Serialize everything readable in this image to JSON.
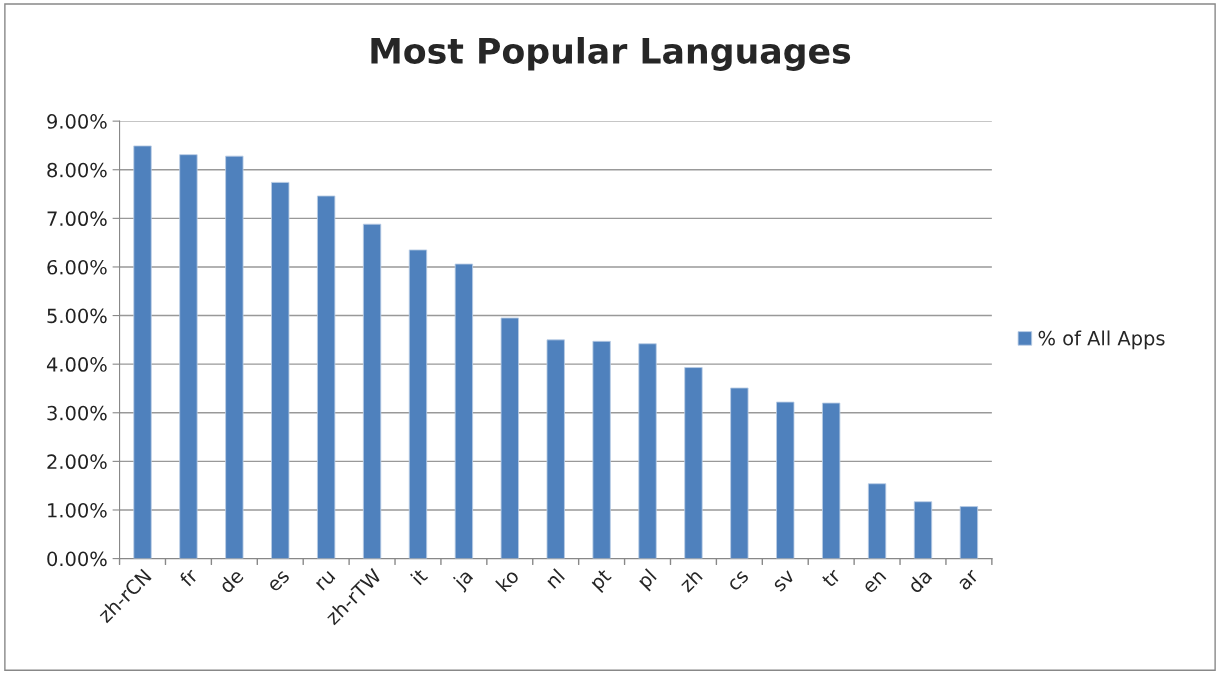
{
  "chart_data": {
    "type": "bar",
    "title": "Most Popular Languages",
    "categories": [
      "zh-rCN",
      "fr",
      "de",
      "es",
      "ru",
      "zh-rTW",
      "it",
      "ja",
      "ko",
      "nl",
      "pt",
      "pl",
      "zh",
      "cs",
      "sv",
      "tr",
      "en",
      "da",
      "ar"
    ],
    "series": [
      {
        "name": "% of All Apps",
        "color": "#4f81bd",
        "values": [
          8.49,
          8.31,
          8.28,
          7.74,
          7.46,
          6.88,
          6.35,
          6.06,
          4.95,
          4.5,
          4.47,
          4.42,
          3.93,
          3.51,
          3.22,
          3.2,
          1.54,
          1.17,
          1.07
        ]
      }
    ],
    "ylim": [
      0,
      9
    ],
    "yticks": [
      {
        "value": 0,
        "label": "0.00%"
      },
      {
        "value": 1,
        "label": "1.00%"
      },
      {
        "value": 2,
        "label": "2.00%"
      },
      {
        "value": 3,
        "label": "3.00%"
      },
      {
        "value": 4,
        "label": "4.00%"
      },
      {
        "value": 5,
        "label": "5.00%"
      },
      {
        "value": 6,
        "label": "6.00%"
      },
      {
        "value": 7,
        "label": "7.00%"
      },
      {
        "value": 8,
        "label": "8.00%"
      },
      {
        "value": 9,
        "label": "9.00%"
      }
    ],
    "grid": "y",
    "legend": "right"
  }
}
